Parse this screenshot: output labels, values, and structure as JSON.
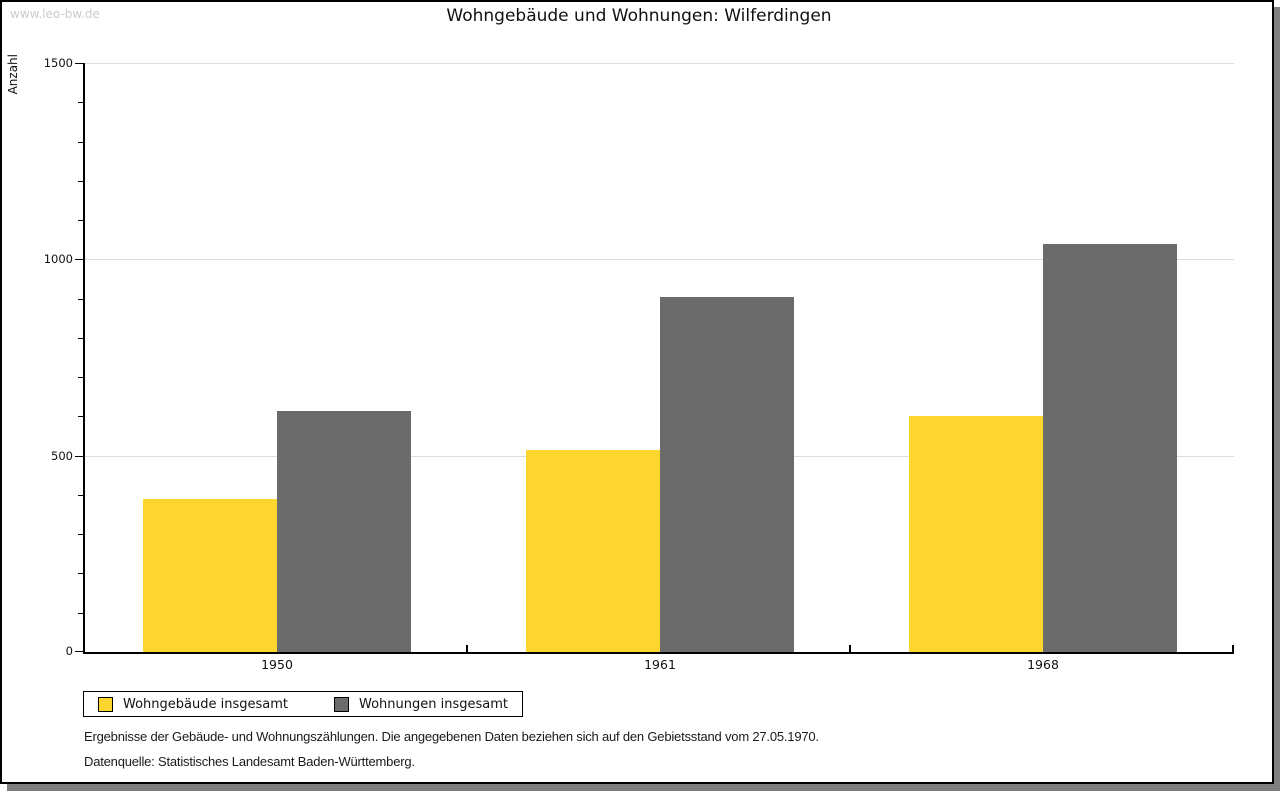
{
  "watermark": "www.leo-bw.de",
  "header": {
    "title": "Wohngebäude und Wohnungen: Wilferdingen"
  },
  "chart_data": {
    "type": "bar",
    "title": "Wohngebäude und Wohnungen: Wilferdingen",
    "xlabel": "",
    "ylabel": "Anzahl",
    "categories": [
      "1950",
      "1961",
      "1968"
    ],
    "series": [
      {
        "name": "Wohngebäude insgesamt",
        "color": "#FCD62F",
        "values": [
          390,
          515,
          600
        ]
      },
      {
        "name": "Wohnungen insgesamt",
        "color": "#6B6B6B",
        "values": [
          615,
          905,
          1040
        ]
      }
    ],
    "ylim": [
      0,
      1500
    ],
    "yticks": [
      0,
      500,
      1000,
      1500
    ],
    "minor_tick_step": 100,
    "grid": true,
    "legend_position": "bottom-left"
  },
  "colors": {
    "grid": "#dddddd",
    "axis": "#000000",
    "shadow": "#7f7f7f",
    "watermark_text": "#cccccc"
  },
  "footer": {
    "line1": "Ergebnisse der Gebäude- und Wohnungszählungen. Die angegebenen Daten beziehen sich auf den Gebietsstand vom 27.05.1970.",
    "line2": "Datenquelle: Statistisches Landesamt Baden-Württemberg."
  }
}
